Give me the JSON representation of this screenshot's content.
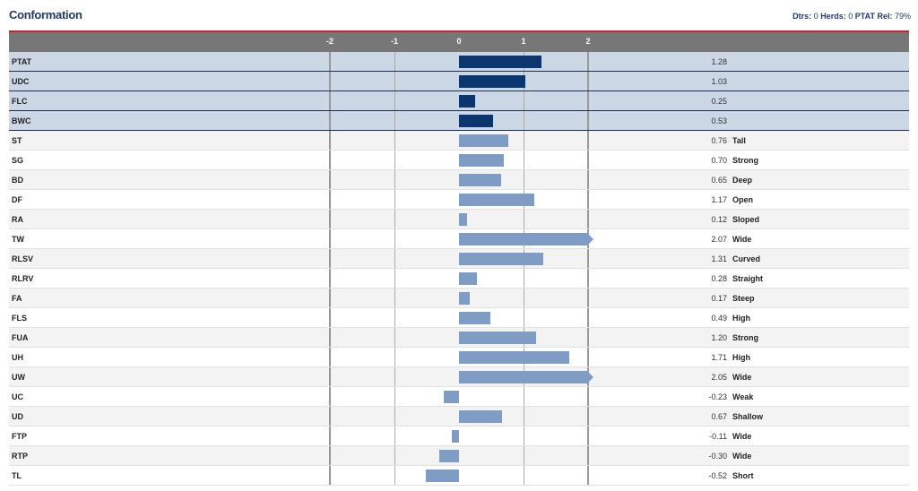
{
  "header": {
    "title": "Conformation",
    "dtrs_label": "Dtrs:",
    "dtrs": "0",
    "herds_label": "Herds:",
    "herds": "0",
    "rel_label": "PTAT Rel:",
    "rel": "79%"
  },
  "chart_data": {
    "type": "bar",
    "orientation": "horizontal",
    "xlim": [
      -2,
      2
    ],
    "ticks": [
      "-2",
      "-1",
      "0",
      "1",
      "2"
    ],
    "colors": {
      "composite": "#0b3670",
      "trait": "#7f9cc4"
    },
    "rows": [
      {
        "label": "PTAT",
        "value": 1.28,
        "value_text": "1.28",
        "desc": "",
        "composite": true
      },
      {
        "label": "UDC",
        "value": 1.03,
        "value_text": "1.03",
        "desc": "",
        "composite": true
      },
      {
        "label": "FLC",
        "value": 0.25,
        "value_text": "0.25",
        "desc": "",
        "composite": true
      },
      {
        "label": "BWC",
        "value": 0.53,
        "value_text": "0.53",
        "desc": "",
        "composite": true
      },
      {
        "label": "ST",
        "value": 0.76,
        "value_text": "0.76",
        "desc": "Tall"
      },
      {
        "label": "SG",
        "value": 0.7,
        "value_text": "0.70",
        "desc": "Strong"
      },
      {
        "label": "BD",
        "value": 0.65,
        "value_text": "0.65",
        "desc": "Deep"
      },
      {
        "label": "DF",
        "value": 1.17,
        "value_text": "1.17",
        "desc": "Open"
      },
      {
        "label": "RA",
        "value": 0.12,
        "value_text": "0.12",
        "desc": "Sloped"
      },
      {
        "label": "TW",
        "value": 2.07,
        "value_text": "2.07",
        "desc": "Wide"
      },
      {
        "label": "RLSV",
        "value": 1.31,
        "value_text": "1.31",
        "desc": "Curved"
      },
      {
        "label": "RLRV",
        "value": 0.28,
        "value_text": "0.28",
        "desc": "Straight"
      },
      {
        "label": "FA",
        "value": 0.17,
        "value_text": "0.17",
        "desc": "Steep"
      },
      {
        "label": "FLS",
        "value": 0.49,
        "value_text": "0.49",
        "desc": "High"
      },
      {
        "label": "FUA",
        "value": 1.2,
        "value_text": "1.20",
        "desc": "Strong"
      },
      {
        "label": "UH",
        "value": 1.71,
        "value_text": "1.71",
        "desc": "High"
      },
      {
        "label": "UW",
        "value": 2.05,
        "value_text": "2.05",
        "desc": "Wide"
      },
      {
        "label": "UC",
        "value": -0.23,
        "value_text": "-0.23",
        "desc": "Weak"
      },
      {
        "label": "UD",
        "value": 0.67,
        "value_text": "0.67",
        "desc": "Shallow"
      },
      {
        "label": "FTP",
        "value": -0.11,
        "value_text": "-0.11",
        "desc": "Wide"
      },
      {
        "label": "RTP",
        "value": -0.3,
        "value_text": "-0.30",
        "desc": "Wide"
      },
      {
        "label": "TL",
        "value": -0.52,
        "value_text": "-0.52",
        "desc": "Short"
      }
    ]
  }
}
